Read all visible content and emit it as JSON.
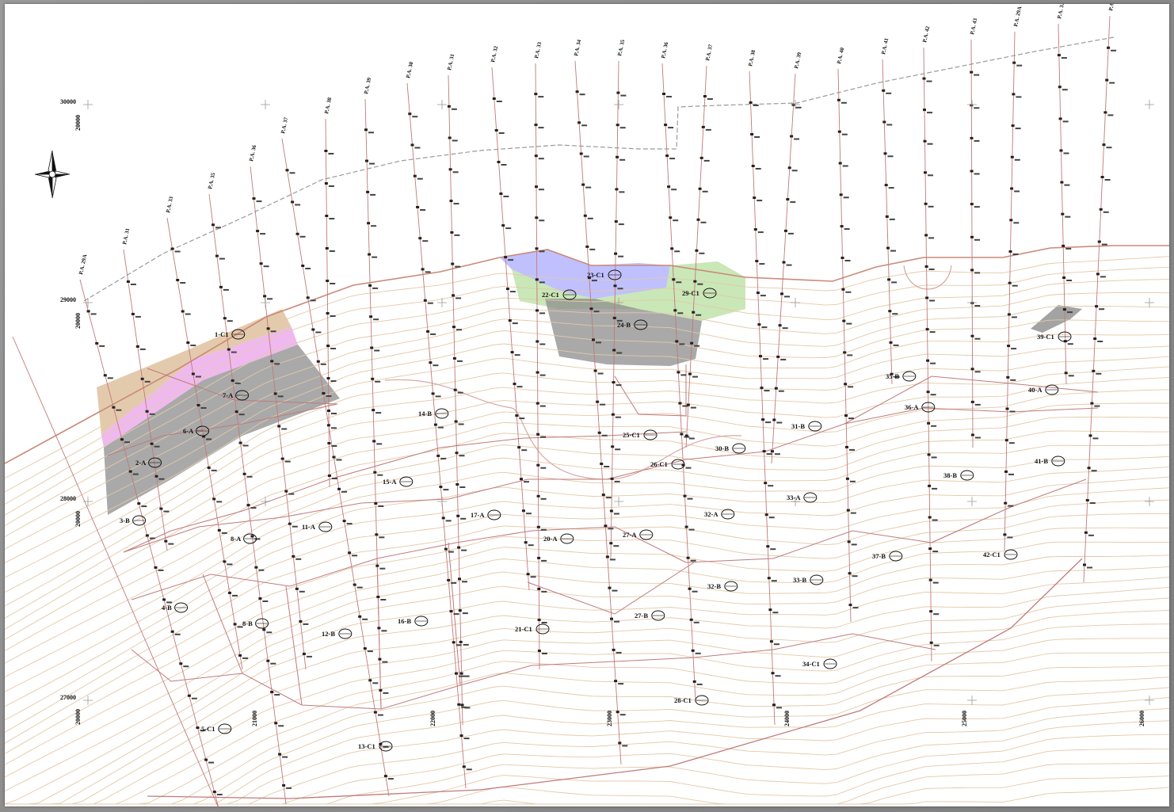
{
  "map": {
    "coords": [
      "30000",
      "29000",
      "28000",
      "27000",
      "20000",
      "21000",
      "22000",
      "23000",
      "24000",
      "25000",
      "26000"
    ],
    "profile_lines": [
      "P.A. 29A",
      "P.A. 31",
      "P.A. 33",
      "P.A. 35",
      "P.A. 36",
      "P.A. 37",
      "P.A. 38",
      "P.A. 39",
      "P.A. 30",
      "P.A. 31",
      "P.A. 32",
      "P.A. 33",
      "P.A. 34",
      "P.A. 35",
      "P.A. 36",
      "P.A. 37",
      "P.A. 38",
      "P.A. 39",
      "P.A. 40",
      "P.A. 41",
      "P.A. 42",
      "P.A. 43"
    ],
    "blocks": [
      "1-C1",
      "2-A",
      "3-B",
      "4-B",
      "5-C1",
      "6-A",
      "7-A",
      "8-A",
      "8-B",
      "11-A",
      "12-B",
      "13-C1",
      "14-B",
      "15-A",
      "16-B",
      "17-A",
      "20-A",
      "21-C1",
      "22-C1",
      "23-C1",
      "24-B",
      "25-C1",
      "26-C1",
      "27-A",
      "27-B",
      "28-C1",
      "29-C1",
      "30-B",
      "31-B",
      "32-A",
      "32-B",
      "33-A",
      "33-B",
      "34-C1",
      "35-B",
      "36-A",
      "37-B",
      "38-B",
      "39-C1",
      "40-A",
      "41-B",
      "42-C1"
    ],
    "colors": {
      "boundary": "#c98a78",
      "contour": "#e3c9a8",
      "section": "#c07a7a",
      "road": "#8a8a8a",
      "zone_orange": "#c9955a",
      "zone_pink": "#e58ae5",
      "zone_gray": "#8c8c8c",
      "zone_blue": "#8c8cff",
      "zone_green": "#9ed37c",
      "drill": "#222222"
    }
  }
}
